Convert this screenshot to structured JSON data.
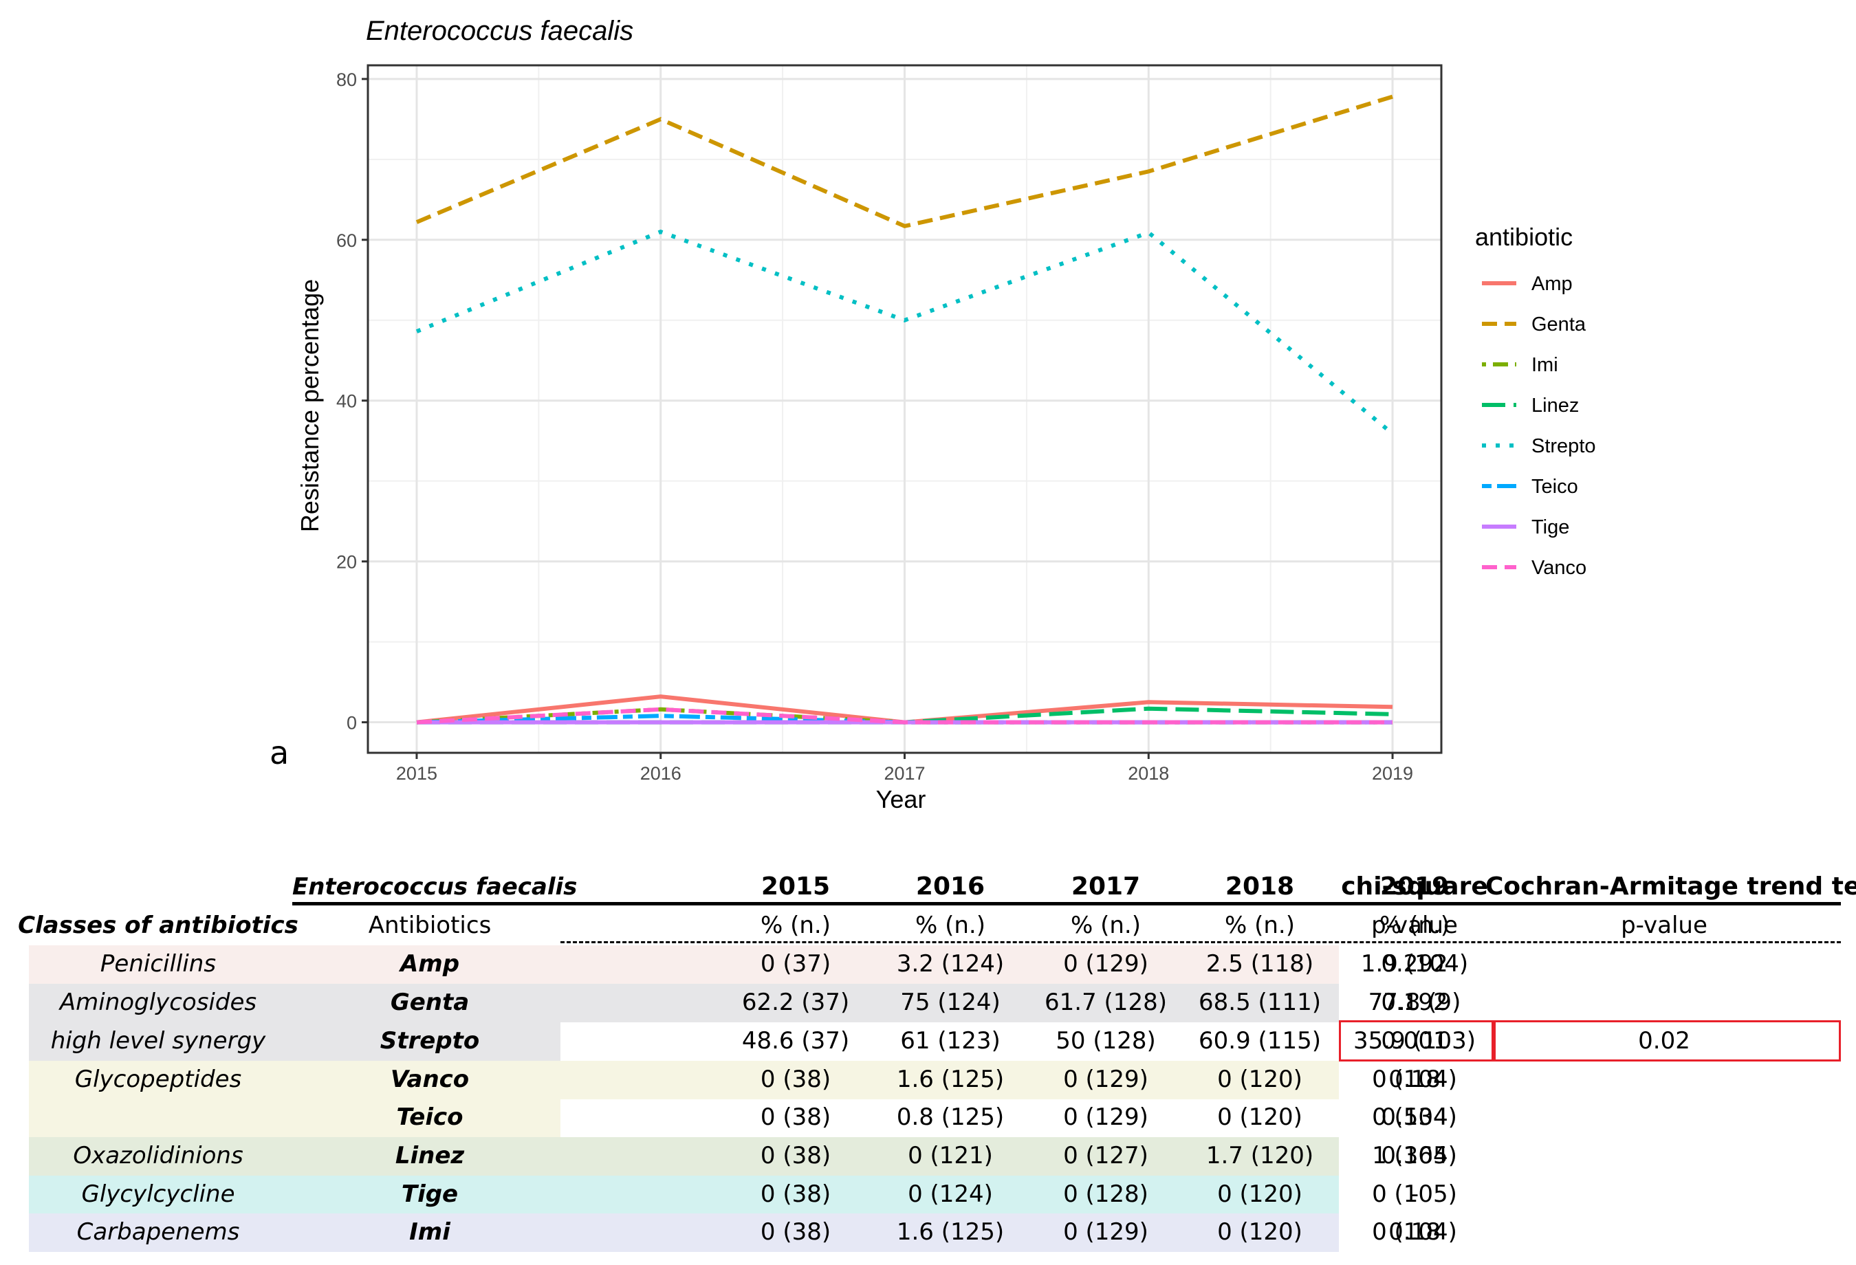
{
  "chart_data": {
    "type": "line",
    "title": "Enterococcus faecalis",
    "xlabel": "Year",
    "ylabel": "Resistance percentage",
    "x": [
      2015,
      2016,
      2017,
      2018,
      2019
    ],
    "xlim": [
      2014.8,
      2019.2
    ],
    "ylim": [
      -3.8,
      81.7
    ],
    "yticks": [
      0,
      20,
      40,
      60,
      80
    ],
    "legend_title": "antibiotic",
    "legend_position": "right",
    "grid": true,
    "series": [
      {
        "name": "Amp",
        "values": [
          0,
          3.2,
          0,
          2.5,
          1.9
        ],
        "color": "#F8766D",
        "dash": "solid"
      },
      {
        "name": "Genta",
        "values": [
          62.2,
          75,
          61.7,
          68.5,
          77.8
        ],
        "color": "#CD9600",
        "dash": "dashed"
      },
      {
        "name": "Imi",
        "values": [
          0,
          1.6,
          0,
          0,
          0
        ],
        "color": "#7CAE00",
        "dash": "dotdash"
      },
      {
        "name": "Linez",
        "values": [
          0,
          0,
          0,
          1.7,
          1
        ],
        "color": "#00BE67",
        "dash": "longdash"
      },
      {
        "name": "Strepto",
        "values": [
          48.6,
          61,
          50,
          60.9,
          35.9
        ],
        "color": "#00BFC4",
        "dash": "dotted"
      },
      {
        "name": "Teico",
        "values": [
          0,
          0.8,
          0,
          0,
          0
        ],
        "color": "#00A9FF",
        "dash": "twodash"
      },
      {
        "name": "Tige",
        "values": [
          0,
          0,
          0,
          0,
          0
        ],
        "color": "#C77CFF",
        "dash": "solid"
      },
      {
        "name": "Vanco",
        "values": [
          0,
          1.6,
          0,
          0,
          0
        ],
        "color": "#FF61CC",
        "dash": "dashed"
      }
    ]
  },
  "panel_label": "a",
  "table": {
    "corner_title": "Enterococcus faecalis",
    "year_headers": [
      "2015",
      "2016",
      "2017",
      "2018",
      "2019"
    ],
    "chi_header": "chi-square",
    "trend_header": "Cochran-Armitage trend test",
    "classes_header": "Classes of antibiotics",
    "antibiotics_header": "Antibiotics",
    "unit_label": "% (n.)",
    "pvalue_label": "p-value",
    "highlight_color": "#e8202a",
    "rows": [
      {
        "cls": "Penicillins",
        "abx": "Amp",
        "vals": [
          "0 (37)",
          "3.2 (124)",
          "0 (129)",
          "2.5 (118)",
          "1.9 (104)"
        ],
        "chi": "0.292",
        "trend": "",
        "bg": "#f9eeec"
      },
      {
        "cls": "Aminoglycosides",
        "abx": "Genta",
        "vals": [
          "62.2 (37)",
          "75 (124)",
          "61.7 (128)",
          "68.5 (111)",
          "77.8 (9)"
        ],
        "chi": "0.192",
        "trend": "",
        "bg": "#e6e6e8"
      },
      {
        "cls": "high level synergy",
        "abx": "Strepto",
        "vals": [
          "48.6 (37)",
          "61 (123)",
          "50 (128)",
          "60.9 (115)",
          "35.9 (103)"
        ],
        "chi": "0.001",
        "trend": "0.02",
        "bg": "#e6e6e8"
      },
      {
        "cls": "Glycopeptides",
        "abx": "Vanco",
        "vals": [
          "0 (38)",
          "1.6 (125)",
          "0 (129)",
          "0 (120)",
          "0 (104)"
        ],
        "chi": "0.18",
        "trend": "",
        "bg": "#f6f5e3"
      },
      {
        "cls": "",
        "abx": "Teico",
        "vals": [
          "0 (38)",
          "0.8 (125)",
          "0 (129)",
          "0 (120)",
          "0 (104)"
        ],
        "chi": "0.534",
        "trend": "",
        "bg": "#f6f5e3"
      },
      {
        "cls": "Oxazolidinions",
        "abx": "Linez",
        "vals": [
          "0 (38)",
          "0 (121)",
          "0 (127)",
          "1.7 (120)",
          "1 (105)"
        ],
        "chi": "0.364",
        "trend": "",
        "bg": "#e4ecdc"
      },
      {
        "cls": "Glycylcycline",
        "abx": "Tige",
        "vals": [
          "0 (38)",
          "0 (124)",
          "0 (128)",
          "0 (120)",
          "0 (105)"
        ],
        "chi": "-",
        "trend": "",
        "bg": "#d3f2f0"
      },
      {
        "cls": "Carbapenems",
        "abx": "Imi",
        "vals": [
          "0 (38)",
          "1.6 (125)",
          "0 (129)",
          "0 (120)",
          "0 (104)"
        ],
        "chi": "0.18",
        "trend": "",
        "bg": "#e6e8f5"
      }
    ]
  }
}
